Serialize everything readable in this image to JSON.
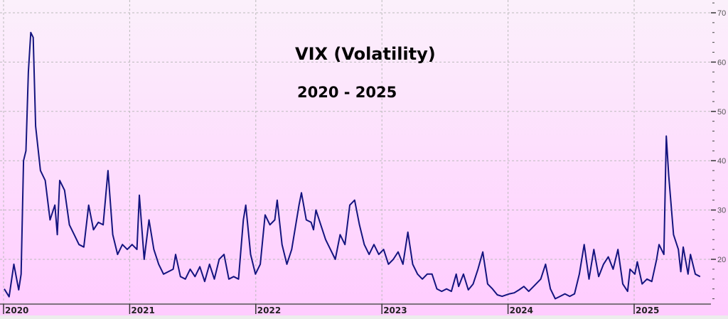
{
  "chart_data": {
    "type": "line",
    "title": "VIX (Volatility)",
    "subtitle": "2020 - 2025",
    "xlabel": "",
    "ylabel": "",
    "x_tick_labels": [
      "2020",
      "2021",
      "2022",
      "2023",
      "2024",
      "2025"
    ],
    "y_tick_labels": [
      "20",
      "30",
      "40",
      "50",
      "60",
      "70"
    ],
    "ylim": [
      11,
      71
    ],
    "y_axis_side": "right",
    "grid": true,
    "line_color": "#14147f",
    "background_top": "#fbf0fb",
    "background_bottom": "#ffccff",
    "points": [
      [
        "2020-01-03",
        14
      ],
      [
        "2020-01-17",
        12.4
      ],
      [
        "2020-01-31",
        19
      ],
      [
        "2020-02-14",
        13.8
      ],
      [
        "2020-02-21",
        17
      ],
      [
        "2020-02-28",
        40
      ],
      [
        "2020-03-06",
        42
      ],
      [
        "2020-03-13",
        58
      ],
      [
        "2020-03-20",
        66
      ],
      [
        "2020-03-27",
        65
      ],
      [
        "2020-04-03",
        47
      ],
      [
        "2020-04-17",
        38
      ],
      [
        "2020-05-01",
        36
      ],
      [
        "2020-05-15",
        28
      ],
      [
        "2020-05-29",
        31
      ],
      [
        "2020-06-05",
        25
      ],
      [
        "2020-06-12",
        36
      ],
      [
        "2020-06-26",
        34
      ],
      [
        "2020-07-10",
        27
      ],
      [
        "2020-07-24",
        25
      ],
      [
        "2020-08-07",
        23
      ],
      [
        "2020-08-21",
        22.5
      ],
      [
        "2020-09-04",
        31
      ],
      [
        "2020-09-18",
        26
      ],
      [
        "2020-10-02",
        27.5
      ],
      [
        "2020-10-16",
        27
      ],
      [
        "2020-10-30",
        38
      ],
      [
        "2020-11-13",
        25
      ],
      [
        "2020-11-27",
        21
      ],
      [
        "2020-12-11",
        23
      ],
      [
        "2020-12-25",
        22
      ],
      [
        "2021-01-08",
        23
      ],
      [
        "2021-01-22",
        22
      ],
      [
        "2021-01-29",
        33
      ],
      [
        "2021-02-12",
        20
      ],
      [
        "2021-02-26",
        28
      ],
      [
        "2021-03-12",
        22
      ],
      [
        "2021-03-26",
        19
      ],
      [
        "2021-04-09",
        17
      ],
      [
        "2021-04-23",
        17.5
      ],
      [
        "2021-05-07",
        18
      ],
      [
        "2021-05-14",
        21
      ],
      [
        "2021-05-28",
        16.5
      ],
      [
        "2021-06-11",
        16
      ],
      [
        "2021-06-25",
        18
      ],
      [
        "2021-07-09",
        16.5
      ],
      [
        "2021-07-23",
        18.5
      ],
      [
        "2021-08-06",
        15.5
      ],
      [
        "2021-08-20",
        19
      ],
      [
        "2021-09-03",
        16
      ],
      [
        "2021-09-17",
        20
      ],
      [
        "2021-10-01",
        21
      ],
      [
        "2021-10-15",
        16
      ],
      [
        "2021-10-29",
        16.5
      ],
      [
        "2021-11-12",
        16
      ],
      [
        "2021-11-26",
        28
      ],
      [
        "2021-12-03",
        31
      ],
      [
        "2021-12-17",
        21
      ],
      [
        "2021-12-31",
        17
      ],
      [
        "2022-01-14",
        19
      ],
      [
        "2022-01-28",
        29
      ],
      [
        "2022-02-11",
        27
      ],
      [
        "2022-02-25",
        28
      ],
      [
        "2022-03-04",
        32
      ],
      [
        "2022-03-18",
        23
      ],
      [
        "2022-04-01",
        19
      ],
      [
        "2022-04-15",
        22
      ],
      [
        "2022-05-06",
        31
      ],
      [
        "2022-05-13",
        33.5
      ],
      [
        "2022-05-27",
        28
      ],
      [
        "2022-06-10",
        27.5
      ],
      [
        "2022-06-17",
        26
      ],
      [
        "2022-06-24",
        30
      ],
      [
        "2022-07-08",
        27
      ],
      [
        "2022-07-22",
        24
      ],
      [
        "2022-08-05",
        22
      ],
      [
        "2022-08-19",
        20
      ],
      [
        "2022-09-02",
        25
      ],
      [
        "2022-09-16",
        23
      ],
      [
        "2022-09-30",
        31
      ],
      [
        "2022-10-14",
        32
      ],
      [
        "2022-10-28",
        27
      ],
      [
        "2022-11-11",
        23
      ],
      [
        "2022-11-25",
        21
      ],
      [
        "2022-12-09",
        23
      ],
      [
        "2022-12-23",
        21
      ],
      [
        "2023-01-06",
        22
      ],
      [
        "2023-01-20",
        19
      ],
      [
        "2023-02-03",
        20
      ],
      [
        "2023-02-17",
        21.5
      ],
      [
        "2023-03-03",
        19
      ],
      [
        "2023-03-17",
        25.5
      ],
      [
        "2023-03-31",
        19
      ],
      [
        "2023-04-14",
        17
      ],
      [
        "2023-04-28",
        16
      ],
      [
        "2023-05-12",
        17
      ],
      [
        "2023-05-26",
        17
      ],
      [
        "2023-06-09",
        14
      ],
      [
        "2023-06-23",
        13.5
      ],
      [
        "2023-07-07",
        14
      ],
      [
        "2023-07-21",
        13.5
      ],
      [
        "2023-08-04",
        17
      ],
      [
        "2023-08-11",
        14.5
      ],
      [
        "2023-08-25",
        17
      ],
      [
        "2023-09-08",
        13.8
      ],
      [
        "2023-09-22",
        15
      ],
      [
        "2023-10-06",
        18
      ],
      [
        "2023-10-20",
        21.5
      ],
      [
        "2023-11-03",
        15
      ],
      [
        "2023-11-17",
        14
      ],
      [
        "2023-12-01",
        12.8
      ],
      [
        "2023-12-15",
        12.5
      ],
      [
        "2024-01-05",
        13
      ],
      [
        "2024-01-19",
        13.2
      ],
      [
        "2024-02-02",
        13.8
      ],
      [
        "2024-02-16",
        14.5
      ],
      [
        "2024-03-01",
        13.5
      ],
      [
        "2024-03-15",
        14.5
      ],
      [
        "2024-04-05",
        16
      ],
      [
        "2024-04-19",
        19
      ],
      [
        "2024-05-03",
        14
      ],
      [
        "2024-05-17",
        12
      ],
      [
        "2024-05-31",
        12.5
      ],
      [
        "2024-06-14",
        13
      ],
      [
        "2024-06-28",
        12.5
      ],
      [
        "2024-07-12",
        13
      ],
      [
        "2024-07-26",
        17
      ],
      [
        "2024-08-09",
        23
      ],
      [
        "2024-08-23",
        16
      ],
      [
        "2024-09-06",
        22
      ],
      [
        "2024-09-20",
        16.5
      ],
      [
        "2024-10-04",
        19
      ],
      [
        "2024-10-18",
        20.5
      ],
      [
        "2024-11-01",
        18
      ],
      [
        "2024-11-15",
        22
      ],
      [
        "2024-11-29",
        15
      ],
      [
        "2024-12-13",
        13.5
      ],
      [
        "2024-12-20",
        18
      ],
      [
        "2025-01-03",
        17
      ],
      [
        "2025-01-10",
        19.5
      ],
      [
        "2025-01-24",
        15
      ],
      [
        "2025-02-07",
        16
      ],
      [
        "2025-02-21",
        15.5
      ],
      [
        "2025-03-07",
        20
      ],
      [
        "2025-03-14",
        23
      ],
      [
        "2025-03-28",
        21
      ],
      [
        "2025-04-04",
        45
      ],
      [
        "2025-04-11",
        37
      ],
      [
        "2025-04-25",
        25
      ],
      [
        "2025-05-09",
        22
      ],
      [
        "2025-05-16",
        17.5
      ],
      [
        "2025-05-23",
        22.5
      ],
      [
        "2025-06-06",
        17
      ],
      [
        "2025-06-13",
        21
      ],
      [
        "2025-06-27",
        17
      ],
      [
        "2025-07-11",
        16.5
      ]
    ]
  }
}
